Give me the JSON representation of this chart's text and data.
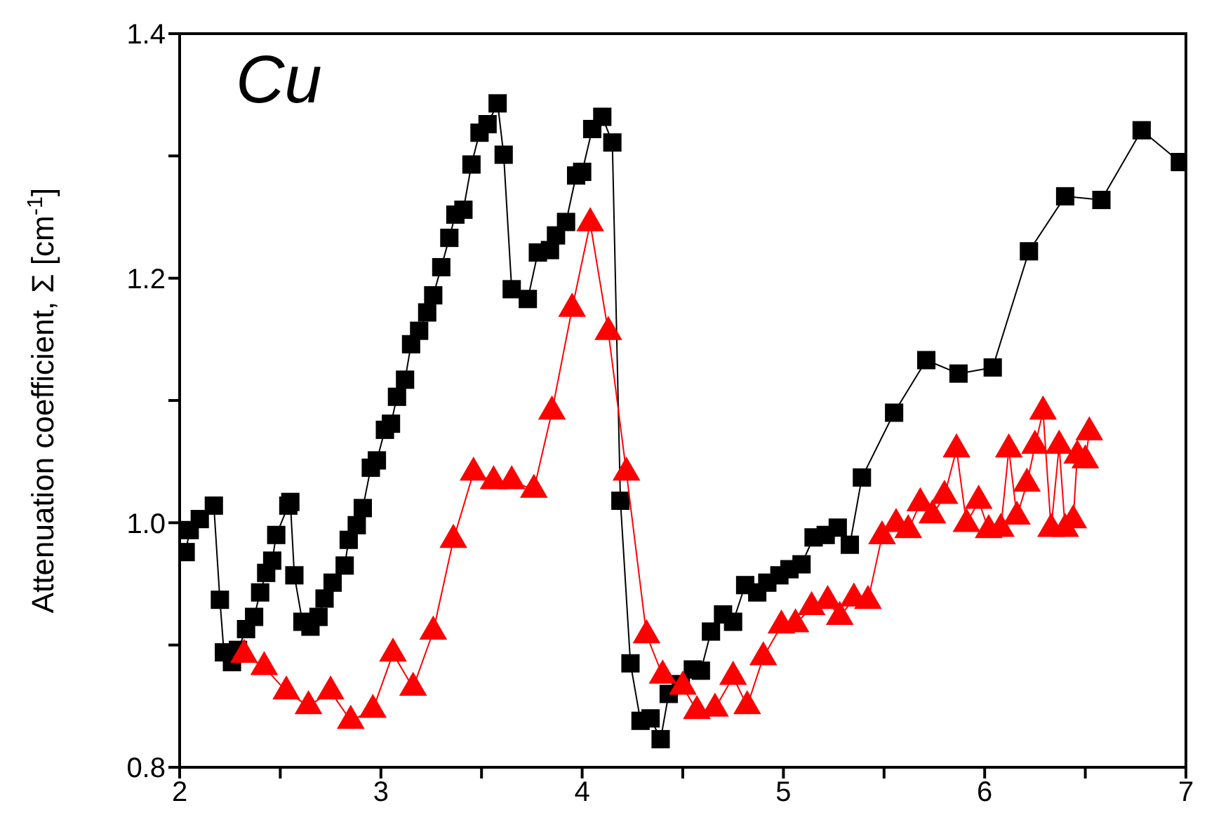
{
  "chart_data": {
    "type": "line",
    "ylabel": "Attenuation coefficient, Σ [cm$^{-1}$]",
    "annotations": [
      "Cu"
    ],
    "xlim": [
      2,
      7
    ],
    "xticks": [
      2,
      {
        "value": 2.5,
        "label": null
      },
      3,
      {
        "value": 3.5,
        "label": null
      },
      4,
      {
        "value": 4.5,
        "label": null
      },
      5,
      {
        "value": 5.5,
        "label": null
      },
      6,
      {
        "value": 6.5,
        "label": null
      },
      7
    ],
    "ylim": [
      0.8,
      1.4
    ],
    "yticks": [
      {
        "value": 0.8,
        "label": "0.8"
      },
      {
        "value": 0.9,
        "label": null
      },
      {
        "value": 1.0,
        "label": "1.0"
      },
      {
        "value": 1.1,
        "label": null
      },
      {
        "value": 1.2,
        "label": "1.2"
      },
      {
        "value": 1.3,
        "label": null
      },
      {
        "value": 1.4,
        "label": "1.4"
      }
    ],
    "grid": false,
    "legend": false,
    "line_style": "solid",
    "series": [
      {
        "color": "#000000",
        "marker": "square",
        "x": [
          2.03,
          2.05,
          2.1,
          2.17,
          2.2,
          2.22,
          2.26,
          2.29,
          2.33,
          2.37,
          2.4,
          2.43,
          2.46,
          2.48,
          2.54,
          2.55,
          2.57,
          2.61,
          2.65,
          2.69,
          2.72,
          2.76,
          2.82,
          2.84,
          2.88,
          2.91,
          2.95,
          2.98,
          3.02,
          3.05,
          3.08,
          3.12,
          3.15,
          3.19,
          3.23,
          3.26,
          3.3,
          3.34,
          3.37,
          3.41,
          3.45,
          3.49,
          3.53,
          3.58,
          3.61,
          3.65,
          3.73,
          3.78,
          3.84,
          3.87,
          3.92,
          3.97,
          4.0,
          4.05,
          4.1,
          4.15,
          4.19,
          4.24,
          4.29,
          4.34,
          4.39,
          4.43,
          4.49,
          4.55,
          4.59,
          4.64,
          4.7,
          4.75,
          4.81,
          4.87,
          4.92,
          4.98,
          5.03,
          5.09,
          5.15,
          5.21,
          5.27,
          5.33,
          5.39,
          5.55,
          5.71,
          5.87,
          6.04,
          6.22,
          6.4,
          6.58,
          6.78,
          6.97
        ],
        "values": [
          0.976,
          0.994,
          1.003,
          1.014,
          0.937,
          0.894,
          0.886,
          0.896,
          0.913,
          0.923,
          0.943,
          0.959,
          0.969,
          0.99,
          1.014,
          1.017,
          0.957,
          0.919,
          0.915,
          0.923,
          0.938,
          0.951,
          0.965,
          0.986,
          0.998,
          1.012,
          1.045,
          1.051,
          1.076,
          1.081,
          1.103,
          1.117,
          1.146,
          1.157,
          1.172,
          1.186,
          1.209,
          1.233,
          1.252,
          1.256,
          1.293,
          1.319,
          1.326,
          1.343,
          1.301,
          1.191,
          1.183,
          1.221,
          1.223,
          1.235,
          1.246,
          1.284,
          1.287,
          1.322,
          1.332,
          1.311,
          1.018,
          0.885,
          0.838,
          0.84,
          0.823,
          0.86,
          0.868,
          0.88,
          0.879,
          0.911,
          0.925,
          0.919,
          0.949,
          0.943,
          0.951,
          0.957,
          0.962,
          0.966,
          0.988,
          0.99,
          0.996,
          0.982,
          1.037,
          1.09,
          1.133,
          1.122,
          1.127,
          1.222,
          1.267,
          1.264,
          1.321,
          1.295
        ]
      },
      {
        "color": "#ff0000",
        "marker": "triangle",
        "x": [
          2.32,
          2.42,
          2.53,
          2.64,
          2.75,
          2.85,
          2.96,
          3.06,
          3.16,
          3.26,
          3.36,
          3.46,
          3.56,
          3.65,
          3.76,
          3.85,
          3.95,
          4.04,
          4.13,
          4.22,
          4.32,
          4.4,
          4.5,
          4.57,
          4.66,
          4.75,
          4.82,
          4.9,
          4.99,
          5.06,
          5.14,
          5.22,
          5.28,
          5.35,
          5.42,
          5.49,
          5.56,
          5.62,
          5.68,
          5.74,
          5.8,
          5.86,
          5.91,
          5.97,
          6.02,
          6.08,
          6.12,
          6.16,
          6.21,
          6.25,
          6.29,
          6.33,
          6.37,
          6.4,
          6.44,
          6.46,
          6.5,
          6.52
        ],
        "values": [
          0.892,
          0.882,
          0.862,
          0.85,
          0.862,
          0.838,
          0.847,
          0.893,
          0.865,
          0.911,
          0.986,
          1.041,
          1.034,
          1.034,
          1.027,
          1.091,
          1.175,
          1.245,
          1.156,
          1.041,
          0.908,
          0.875,
          0.866,
          0.846,
          0.848,
          0.874,
          0.85,
          0.89,
          0.916,
          0.917,
          0.931,
          0.936,
          0.923,
          0.938,
          0.936,
          0.989,
          0.999,
          0.994,
          1.016,
          1.006,
          1.022,
          1.06,
          0.999,
          1.018,
          0.994,
          0.995,
          1.06,
          1.005,
          1.032,
          1.063,
          1.091,
          0.995,
          1.063,
          0.995,
          1.002,
          1.055,
          1.051,
          1.074
        ]
      }
    ]
  }
}
